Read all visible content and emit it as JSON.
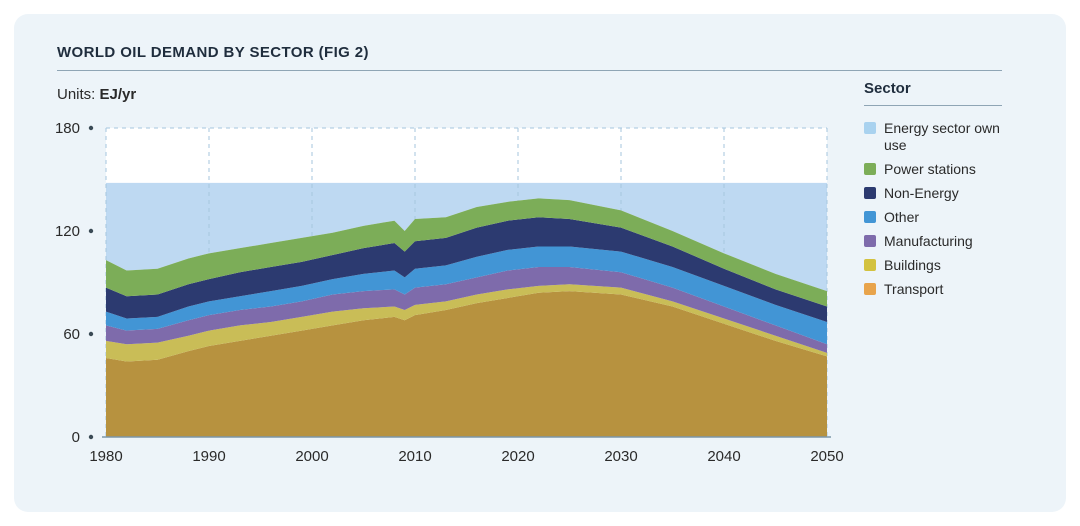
{
  "page": {
    "title": "WORLD OIL DEMAND BY SECTOR (FIG 2)",
    "units_label": "Units:",
    "units_value": "EJ/yr"
  },
  "legend": {
    "header": "Sector",
    "items": [
      {
        "label": "Energy sector own use",
        "color": "#a9d2ef"
      },
      {
        "label": "Power stations",
        "color": "#7cad58"
      },
      {
        "label": "Non-Energy",
        "color": "#2c3a70"
      },
      {
        "label": "Other",
        "color": "#4295d5"
      },
      {
        "label": "Manufacturing",
        "color": "#7e6bab"
      },
      {
        "label": "Buildings",
        "color": "#d3c23f"
      },
      {
        "label": "Transport",
        "color": "#e8a44c"
      }
    ]
  },
  "chart_data": {
    "type": "area",
    "subtype": "stacked-area",
    "title": "WORLD OIL DEMAND BY SECTOR (FIG 2)",
    "ylabel": "EJ/yr",
    "xlim": [
      1980,
      2050
    ],
    "ylim": [
      0,
      180
    ],
    "y_ticks": [
      0,
      60,
      120,
      180
    ],
    "x_ticks": [
      1980,
      1990,
      2000,
      2010,
      2020,
      2030,
      2040,
      2050
    ],
    "grid": "vertical-dashed-per-decade, dashed top line at 180, solid baseline at 0",
    "legend_position": "right",
    "years": [
      1980,
      1982,
      1985,
      1988,
      1990,
      1993,
      1996,
      1999,
      2002,
      2005,
      2008,
      2009,
      2010,
      2013,
      2016,
      2019,
      2022,
      2025,
      2030,
      2035,
      2040,
      2045,
      2050
    ],
    "series": [
      {
        "name": "Transport",
        "color": "#b7923f",
        "values": [
          46,
          44,
          45,
          50,
          53,
          56,
          59,
          62,
          65,
          68,
          70,
          68,
          71,
          74,
          78,
          81,
          84,
          85,
          83,
          76,
          66,
          56,
          47
        ]
      },
      {
        "name": "Buildings",
        "color": "#c9bd57",
        "values": [
          10,
          10,
          10,
          9,
          9,
          9,
          8,
          8,
          8,
          7,
          6,
          6,
          6,
          5,
          5,
          5,
          4,
          4,
          4,
          3,
          3,
          3,
          2
        ]
      },
      {
        "name": "Manufacturing",
        "color": "#7e6bab",
        "values": [
          9,
          8,
          8,
          9,
          9,
          9,
          9,
          9,
          10,
          10,
          10,
          9,
          10,
          10,
          10,
          11,
          11,
          10,
          9,
          8,
          7,
          6,
          5
        ]
      },
      {
        "name": "Other",
        "color": "#4295d5",
        "values": [
          8,
          7,
          7,
          8,
          8,
          8,
          9,
          9,
          9,
          10,
          11,
          10,
          11,
          11,
          12,
          12,
          12,
          12,
          12,
          12,
          12,
          12,
          13
        ]
      },
      {
        "name": "Non-Energy",
        "color": "#2c3a70",
        "values": [
          14,
          13,
          13,
          13,
          13,
          14,
          14,
          14,
          14,
          15,
          16,
          15,
          16,
          16,
          17,
          17,
          17,
          16,
          14,
          12,
          10,
          9,
          9
        ]
      },
      {
        "name": "Power stations",
        "color": "#7cad58",
        "values": [
          16,
          15,
          15,
          15,
          15,
          14,
          14,
          14,
          13,
          13,
          13,
          12,
          13,
          12,
          12,
          11,
          11,
          11,
          10,
          9,
          9,
          9,
          9
        ]
      }
    ],
    "energy_sector_own_use": {
      "name": "Energy sector own use",
      "color": "#bed9f2",
      "fills_from": "top of stack",
      "fills_to": 148
    }
  }
}
